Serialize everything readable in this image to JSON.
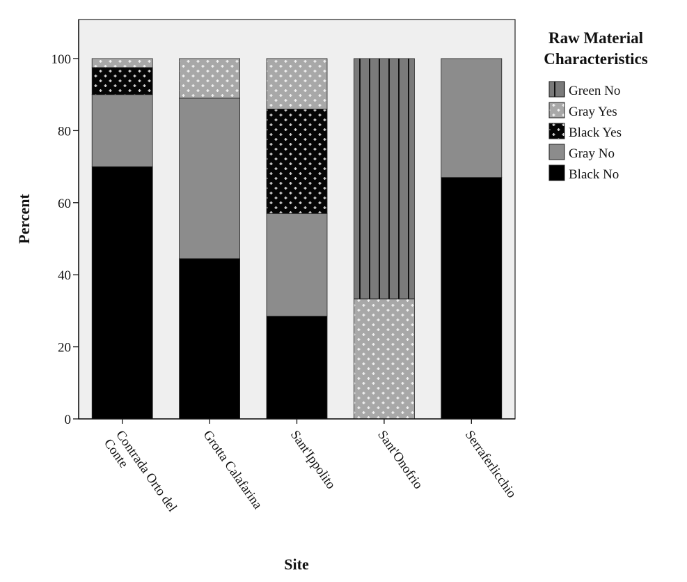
{
  "chart_data": {
    "type": "bar",
    "stacked": true,
    "xlabel": "Site",
    "ylabel": "Percent",
    "ylim": [
      0,
      110
    ],
    "yticks": [
      0,
      20,
      40,
      60,
      80,
      100
    ],
    "grid": false,
    "legend_position": "right",
    "legend_title": [
      "Raw Material",
      "Characteristics"
    ],
    "categories": [
      [
        "Contrada Orto del",
        "Conte"
      ],
      [
        "Grotta Calafarina"
      ],
      [
        "Sant'Ippolito"
      ],
      [
        "Sant'Onofrio"
      ],
      [
        "Serraferlicchio"
      ]
    ],
    "series": [
      {
        "name": "Black No",
        "values": [
          70,
          44.5,
          28.5,
          0,
          67
        ],
        "color": "#000000",
        "pattern": "solid"
      },
      {
        "name": "Gray No",
        "values": [
          20,
          44.5,
          28.5,
          0,
          33
        ],
        "color": "#8c8c8c",
        "pattern": "solid"
      },
      {
        "name": "Black Yes",
        "values": [
          7.5,
          0,
          29,
          0,
          0
        ],
        "color": "#000000",
        "pattern": "black-crosses"
      },
      {
        "name": "Gray Yes",
        "values": [
          2.5,
          11,
          14,
          33.3,
          0
        ],
        "color": "#a8a8a8",
        "pattern": "gray-crosses"
      },
      {
        "name": "Green No",
        "values": [
          0,
          0,
          0,
          66.7,
          0
        ],
        "color": "#7a7a7a",
        "pattern": "vertical-lines"
      }
    ]
  }
}
